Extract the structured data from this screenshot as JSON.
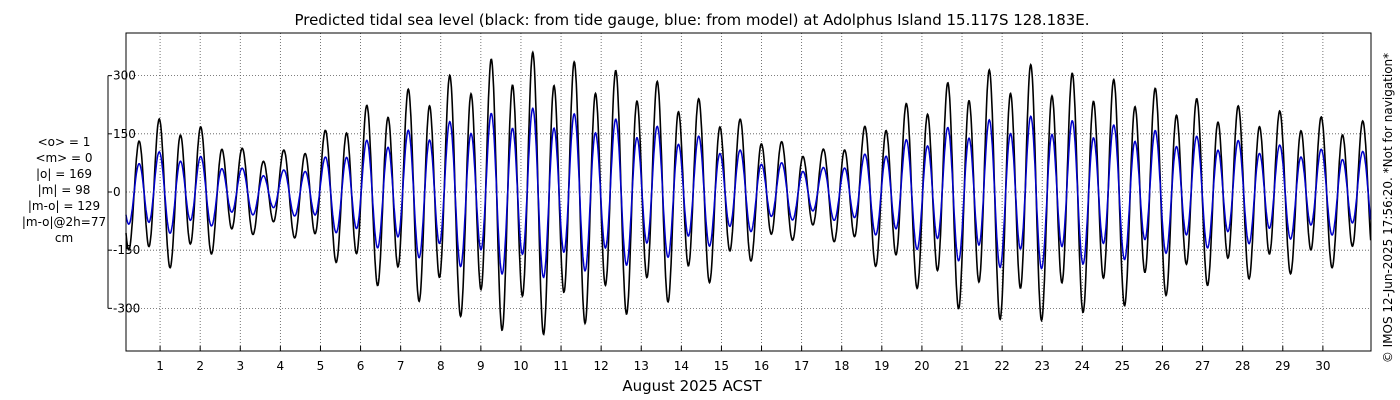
{
  "chart_data": {
    "type": "line",
    "title": "Predicted tidal sea level (black: from tide gauge, blue: from model) at Adolphus Island 15.117S 128.183E.",
    "xlabel": "August 2025 ACST",
    "ylabel": "",
    "x_ticks": [
      "1",
      "2",
      "3",
      "4",
      "5",
      "6",
      "7",
      "8",
      "9",
      "10",
      "11",
      "12",
      "13",
      "14",
      "15",
      "16",
      "17",
      "18",
      "19",
      "20",
      "21",
      "22",
      "23",
      "24",
      "25",
      "26",
      "27",
      "28",
      "29",
      "30"
    ],
    "y_ticks": [
      "300",
      "150",
      "0",
      "-150",
      "-300"
    ],
    "y_tick_values": [
      300,
      150,
      0,
      -150,
      -300
    ],
    "xlim": [
      0.15,
      31.2
    ],
    "ylim": [
      -410,
      410
    ],
    "grid": true,
    "stats": [
      "<o> = 1",
      "<m> = 0",
      "|o| = 169",
      "|m| = 98",
      "|m-o| = 129",
      "|m-o|@2h=77",
      "cm"
    ],
    "credit": "© IMOS 12-Jun-2025 17:56:20. *Not for navigation*",
    "series": [
      {
        "name": "tide gauge",
        "color": "#000000",
        "samples_per_day": 24,
        "x_start_day": 0.15,
        "amplitude_days": [
          0.15,
          0.7,
          1.4,
          2.2,
          3.0,
          3.7,
          4.5,
          5.3,
          6.0,
          7.0,
          8.2,
          9.2,
          10.4,
          11.3,
          12.5,
          13.6,
          14.6,
          15.6,
          16.6,
          17.5,
          18.2,
          19.0,
          19.9,
          20.8,
          21.7,
          22.6,
          23.5,
          24.5,
          25.4,
          26.3,
          27.2,
          28.2,
          29.1,
          30.1,
          31.2
        ],
        "amplitude_cm": [
          135,
          180,
          185,
          155,
          110,
          95,
          115,
          165,
          210,
          250,
          290,
          330,
          350,
          325,
          300,
          270,
          225,
          175,
          120,
          105,
          140,
          190,
          235,
          280,
          305,
          320,
          300,
          285,
          270,
          245,
          225,
          210,
          200,
          185,
          175
        ],
        "mean_offset_cm": 0
      },
      {
        "name": "model",
        "color": "#0000cc",
        "samples_per_day": 24,
        "x_start_day": 0.15,
        "amplitude_days": [
          0.15,
          0.7,
          1.4,
          2.2,
          3.0,
          3.7,
          4.5,
          5.3,
          6.0,
          7.0,
          8.2,
          9.2,
          10.4,
          11.3,
          12.5,
          13.6,
          14.6,
          15.6,
          16.6,
          17.5,
          18.2,
          19.0,
          19.9,
          20.8,
          21.7,
          22.6,
          23.5,
          24.5,
          25.4,
          26.3,
          27.2,
          28.2,
          29.1,
          30.1,
          31.2
        ],
        "amplitude_cm": [
          75,
          100,
          100,
          85,
          60,
          50,
          60,
          95,
          125,
          150,
          175,
          195,
          210,
          195,
          180,
          160,
          135,
          100,
          70,
          60,
          80,
          110,
          140,
          165,
          180,
          190,
          180,
          170,
          160,
          145,
          135,
          125,
          115,
          105,
          100
        ],
        "mean_offset_cm": 0
      }
    ]
  }
}
